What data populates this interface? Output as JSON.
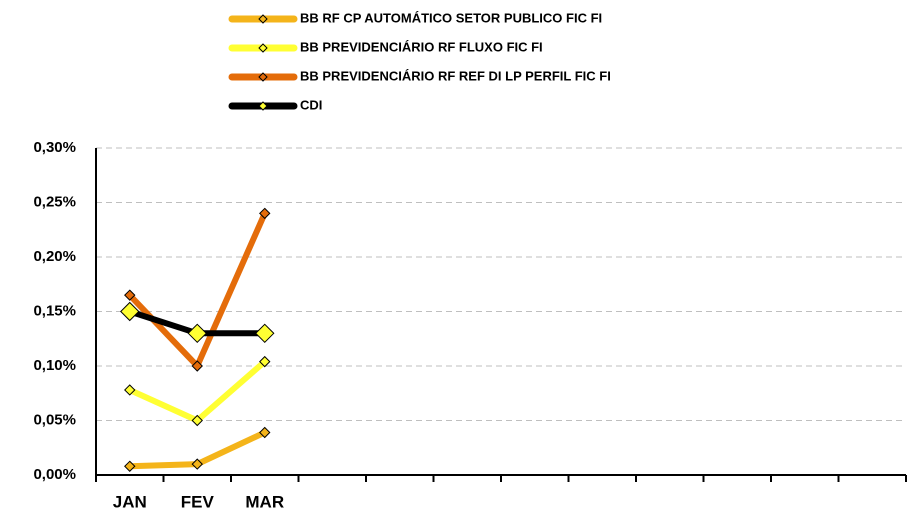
{
  "chart_data": {
    "type": "line",
    "categories": [
      "JAN",
      "FEV",
      "MAR",
      null,
      null,
      null,
      null,
      null,
      null,
      null,
      null,
      null
    ],
    "series": [
      {
        "name": "BB RF CP AUTOMÁTICO SETOR PUBLICO FIC FI",
        "color": "#f4b41a",
        "values": [
          0.008,
          0.01,
          0.039,
          null,
          null,
          null,
          null,
          null,
          null,
          null,
          null,
          null
        ]
      },
      {
        "name": "BB PREVIDENCIÁRIO RF FLUXO FIC FI",
        "color": "#ffff33",
        "values": [
          0.078,
          0.05,
          0.104,
          null,
          null,
          null,
          null,
          null,
          null,
          null,
          null,
          null
        ]
      },
      {
        "name": "BB PREVIDENCIÁRIO RF REF DI LP PERFIL FIC FI",
        "color": "#e46c0a",
        "values": [
          0.165,
          0.1,
          0.24,
          null,
          null,
          null,
          null,
          null,
          null,
          null,
          null,
          null
        ]
      },
      {
        "name": "CDI",
        "color": "#000000",
        "values": [
          0.15,
          0.13,
          0.13,
          null,
          null,
          null,
          null,
          null,
          null,
          null,
          null,
          null
        ]
      }
    ],
    "ylim": [
      0,
      0.3
    ],
    "yticks": [
      {
        "value": 0,
        "label": "0,00%"
      },
      {
        "value": 0.05,
        "label": "0,05%"
      },
      {
        "value": 0.1,
        "label": "0,10%"
      },
      {
        "value": 0.15,
        "label": "0,15%"
      },
      {
        "value": 0.2,
        "label": "0,20%"
      },
      {
        "value": 0.25,
        "label": "0,25%"
      },
      {
        "value": 0.3,
        "label": "0,30%"
      }
    ],
    "grid": true
  }
}
